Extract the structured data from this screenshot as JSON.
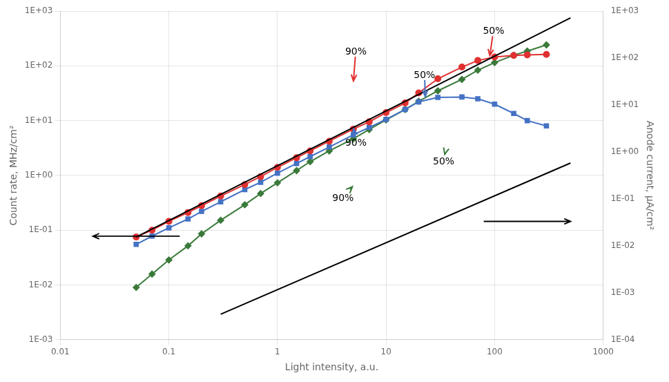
{
  "chart_data": {
    "type": "line",
    "xlabel": "Light intensity, a.u.",
    "ylabel": "Count rate, MHz/cm²",
    "y2label": "Anode current, μA/cm²",
    "log": true,
    "grid": true,
    "xlim": [
      0.01,
      1000
    ],
    "xticks": [
      0.01,
      0.1,
      1,
      10,
      100,
      1000
    ],
    "ylim": [
      0.001,
      1000
    ],
    "yticks": [
      {
        "value": 0.001,
        "label": "1E-03"
      },
      {
        "value": 0.01,
        "label": "1E-02"
      },
      {
        "value": 0.1,
        "label": "1E-01"
      },
      {
        "value": 1,
        "label": "1E+00"
      },
      {
        "value": 10,
        "label": "1E+01"
      },
      {
        "value": 100,
        "label": "1E+02"
      },
      {
        "value": 1000,
        "label": "1E+03"
      }
    ],
    "y2lim": [
      0.0001,
      1000
    ],
    "y2ticks": [
      {
        "value": 0.0001,
        "label": "1E-04"
      },
      {
        "value": 0.001,
        "label": "1E-03"
      },
      {
        "value": 0.01,
        "label": "1E-02"
      },
      {
        "value": 0.1,
        "label": "1E-01"
      },
      {
        "value": 1,
        "label": "1E+00"
      },
      {
        "value": 10,
        "label": "1E+01"
      },
      {
        "value": 100,
        "label": "1E+02"
      },
      {
        "value": 1000,
        "label": "1E+03"
      }
    ],
    "series": [
      {
        "color": "#000000",
        "marker": "none",
        "line_style": "solid",
        "axis": "y",
        "x": [
          0.05,
          500.0
        ],
        "values": [
          0.075,
          750.0
        ]
      },
      {
        "color": "#e03030",
        "marker": "circle",
        "line_style": "solid",
        "axis": "y",
        "x": [
          0.05,
          0.07,
          0.1,
          0.15,
          0.2,
          0.3,
          0.5,
          0.7,
          1.0,
          1.5,
          2.0,
          3.0,
          5.0,
          7.0,
          10.0,
          15.0,
          20.0,
          30.0,
          50.0,
          70.0,
          100.0,
          150.0,
          200.0,
          300.0
        ],
        "values": [
          0.075,
          0.1,
          0.145,
          0.21,
          0.28,
          0.42,
          0.68,
          0.95,
          1.4,
          2.1,
          2.8,
          4.2,
          7.0,
          9.5,
          14.0,
          21.0,
          32.0,
          58.0,
          95.0,
          125.0,
          145.0,
          155.0,
          158.0,
          162.0
        ]
      },
      {
        "color": "#4472c4",
        "marker": "square",
        "line_style": "solid",
        "axis": "y",
        "x": [
          0.05,
          0.07,
          0.1,
          0.15,
          0.2,
          0.3,
          0.5,
          0.7,
          1.0,
          1.5,
          2.0,
          3.0,
          5.0,
          7.0,
          10.0,
          15.0,
          20.0,
          30.0,
          50.0,
          70.0,
          100.0,
          150.0,
          200.0,
          300.0
        ],
        "values": [
          0.055,
          0.078,
          0.11,
          0.16,
          0.22,
          0.33,
          0.55,
          0.75,
          1.1,
          1.65,
          2.2,
          3.3,
          5.5,
          7.5,
          10.5,
          16.0,
          22.0,
          26.5,
          27.0,
          25.0,
          20.0,
          13.5,
          10.0,
          8.0
        ]
      },
      {
        "color": "#3a7a3a",
        "marker": "diamond",
        "line_style": "solid",
        "axis": "y2",
        "x": [
          0.05,
          0.07,
          0.1,
          0.15,
          0.2,
          0.3,
          0.5,
          0.7,
          1.0,
          1.5,
          2.0,
          3.0,
          5.0,
          7.0,
          10.0,
          15.0,
          20.0,
          30.0,
          50.0,
          70.0,
          100.0,
          150.0,
          200.0,
          300.0
        ],
        "values": [
          0.0013,
          0.0025,
          0.005,
          0.01,
          0.018,
          0.035,
          0.075,
          0.13,
          0.22,
          0.4,
          0.62,
          1.05,
          1.9,
          3.0,
          4.8,
          8.0,
          12.0,
          20.0,
          35.0,
          55.0,
          80.0,
          115.0,
          140.0,
          190.0
        ]
      },
      {
        "color": "#000000",
        "marker": "none",
        "line_style": "solid",
        "axis": "y2",
        "x": [
          0.3,
          500.0
        ],
        "values": [
          0.00035,
          0.58
        ]
      }
    ],
    "annotations": [
      {
        "text": "90%",
        "x": 5.0,
        "y": 50.0,
        "text_x": 4.2,
        "text_y": 160.0,
        "color": "#e03030",
        "axis": "y"
      },
      {
        "text": "50%",
        "x": 90.0,
        "y": 145.0,
        "text_x": 78.0,
        "text_y": 380.0,
        "color": "#e03030",
        "axis": "y"
      },
      {
        "text": "90%",
        "x": 5.0,
        "y": 7.5,
        "text_x": 4.2,
        "text_y": 3.5,
        "color": "#4472c4",
        "axis": "y"
      },
      {
        "text": "50%",
        "x": 23.0,
        "y": 26.0,
        "text_x": 18.0,
        "text_y": 60.0,
        "color": "#4472c4",
        "axis": "y"
      },
      {
        "text": "90%",
        "x": 5.0,
        "y": 0.19,
        "text_x": 3.2,
        "text_y": 0.09,
        "color": "#3a7a3a",
        "axis": "y2"
      },
      {
        "text": "50%",
        "x": 35.0,
        "y": 0.95,
        "text_x": 27.0,
        "text_y": 0.55,
        "color": "#3a7a3a",
        "axis": "y2"
      }
    ]
  }
}
